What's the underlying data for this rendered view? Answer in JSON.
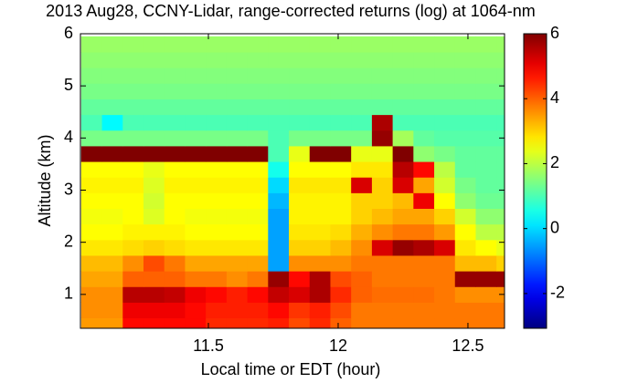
{
  "chart_data": {
    "type": "heatmap",
    "title": "2013 Aug28, CCNY-Lidar, range-corrected returns (log) at 1064-nm",
    "xlabel": "Local time or EDT (hour)",
    "ylabel": "Altitude (km)",
    "xlim": [
      11.007,
      12.641
    ],
    "xticks": [
      11.5,
      12,
      12.5
    ],
    "ylim": [
      0.35,
      6
    ],
    "yticks": [
      1,
      2,
      3,
      4,
      5,
      6
    ],
    "clim": [
      -3.07,
      6
    ],
    "cticks": [
      -2,
      0,
      2,
      4,
      6
    ],
    "colormap": "jet",
    "x": [
      11.05,
      11.13,
      11.21,
      11.29,
      11.37,
      11.45,
      11.53,
      11.61,
      11.69,
      11.77,
      11.85,
      11.93,
      12.01,
      12.09,
      12.17,
      12.25,
      12.33,
      12.41,
      12.49,
      12.57,
      12.65
    ],
    "y": [
      0.4,
      0.7,
      1.0,
      1.3,
      1.6,
      1.9,
      2.2,
      2.5,
      2.8,
      3.1,
      3.4,
      3.7,
      4.0,
      4.3,
      4.6,
      4.9,
      5.2,
      5.5,
      5.8
    ],
    "z": [
      [
        3.5,
        3.5,
        4.8,
        4.8,
        4.8,
        4.8,
        4.5,
        4.5,
        4.5,
        4.6,
        4.2,
        4.5,
        4,
        3.8,
        3.8,
        3.8,
        3.8,
        3.8,
        3.8,
        3.8,
        3.8
      ],
      [
        3.6,
        3.6,
        5,
        5,
        5,
        4.8,
        4.6,
        4.6,
        4.6,
        4.8,
        4.4,
        4.6,
        4.2,
        3.8,
        3.8,
        3.8,
        3.8,
        3.8,
        3.8,
        3.8,
        3.8
      ],
      [
        3.6,
        3.6,
        5.5,
        5.5,
        5.4,
        5,
        4.8,
        4.6,
        4.8,
        5.4,
        5.2,
        5.6,
        4.5,
        4,
        3.9,
        3.9,
        3.9,
        3.8,
        3.6,
        3.6,
        3.6
      ],
      [
        3.4,
        3.4,
        4,
        4,
        4,
        3.8,
        3.8,
        3.6,
        3.8,
        5.8,
        4.8,
        5.6,
        4.2,
        4,
        3.8,
        3.8,
        3.8,
        3.8,
        5.8,
        5.8,
        5.8
      ],
      [
        3.2,
        3.2,
        3.6,
        4.2,
        3.8,
        3.4,
        3.4,
        3.4,
        3.4,
        -0.5,
        3.6,
        3.6,
        3.6,
        3.8,
        3.8,
        3.8,
        3.8,
        3.8,
        3.2,
        3.2,
        3
      ],
      [
        2.8,
        2.8,
        2.9,
        3,
        2.9,
        2.8,
        2.8,
        2.8,
        2.8,
        -0.5,
        3,
        3,
        3.2,
        3.6,
        5.2,
        5.8,
        5.6,
        5.2,
        2.8,
        2.6,
        2.4
      ],
      [
        2.6,
        2.6,
        2.7,
        2.7,
        2.7,
        2.6,
        2.6,
        2.6,
        2.6,
        -0.5,
        2.8,
        2.8,
        2.9,
        3.3,
        3.6,
        3.8,
        3.8,
        3.5,
        2.6,
        2,
        2
      ],
      [
        2.5,
        2.5,
        2.6,
        2.3,
        2.6,
        2.5,
        2.5,
        2.5,
        2.5,
        -0.5,
        2.7,
        2.7,
        2.7,
        3,
        3.2,
        3.4,
        3.4,
        3,
        2.2,
        1.6,
        1.6
      ],
      [
        2.6,
        2.6,
        2.6,
        2.2,
        2.6,
        2.6,
        2.6,
        2.6,
        2.6,
        -0.3,
        2.7,
        2.7,
        2.7,
        3,
        3,
        3.2,
        5,
        2.6,
        1.6,
        1.3,
        1.3
      ],
      [
        2.7,
        2.7,
        2.7,
        2.3,
        2.7,
        2.7,
        2.7,
        2.7,
        2.7,
        0,
        2.8,
        2.8,
        2.8,
        5.2,
        3,
        5.2,
        3.4,
        2.2,
        1.4,
        1.2,
        1.2
      ],
      [
        2.6,
        2.6,
        2.6,
        2.4,
        2.6,
        2.6,
        2.6,
        2.6,
        2.6,
        0.5,
        2.6,
        2.6,
        2.6,
        2.8,
        2.8,
        5.5,
        4.8,
        2,
        1.2,
        1.2,
        1.2
      ],
      [
        6,
        6,
        6,
        6,
        6,
        6,
        6,
        6,
        6,
        1,
        2.4,
        6,
        6,
        2.4,
        2.4,
        6,
        1.6,
        1.4,
        1.2,
        1.2,
        1.2
      ],
      [
        1.4,
        1.4,
        1.4,
        1.4,
        1.4,
        1.4,
        1.4,
        1.4,
        1.4,
        1,
        1.4,
        1.4,
        1.4,
        1.4,
        5.8,
        1.8,
        1.2,
        1.1,
        1.1,
        1.1,
        1.1
      ],
      [
        1,
        0.3,
        1,
        1,
        1,
        1,
        1,
        1,
        1,
        1,
        1,
        1,
        1,
        1,
        5.6,
        1,
        1,
        1,
        1,
        1,
        1
      ],
      [
        1.2,
        1.2,
        1.2,
        1.2,
        1.2,
        1.2,
        1.2,
        1.2,
        1.2,
        1.2,
        1.2,
        1.2,
        1.2,
        1.2,
        1.2,
        1.2,
        1.2,
        1.2,
        1.2,
        1.2,
        1.2
      ],
      [
        1.4,
        1.4,
        1.4,
        1.4,
        1.4,
        1.4,
        1.4,
        1.4,
        1.4,
        1.4,
        1.4,
        1.4,
        1.4,
        1.4,
        1.4,
        1.4,
        1.4,
        1.4,
        1.4,
        1.4,
        1.4
      ],
      [
        1.5,
        1.5,
        1.5,
        1.5,
        1.5,
        1.5,
        1.5,
        1.5,
        1.5,
        1.5,
        1.5,
        1.5,
        1.5,
        1.5,
        1.5,
        1.5,
        1.5,
        1.5,
        1.5,
        1.5,
        1.5
      ],
      [
        1.6,
        1.6,
        1.6,
        1.6,
        1.6,
        1.6,
        1.6,
        1.6,
        1.6,
        1.6,
        1.6,
        1.6,
        1.6,
        1.6,
        1.6,
        1.6,
        1.6,
        1.6,
        1.6,
        1.6,
        1.6
      ],
      [
        1.7,
        1.7,
        1.7,
        1.7,
        1.7,
        1.7,
        1.7,
        1.7,
        1.7,
        1.7,
        1.7,
        1.7,
        1.7,
        1.7,
        1.7,
        1.7,
        1.7,
        1.7,
        1.7,
        1.7,
        1.7
      ]
    ]
  }
}
